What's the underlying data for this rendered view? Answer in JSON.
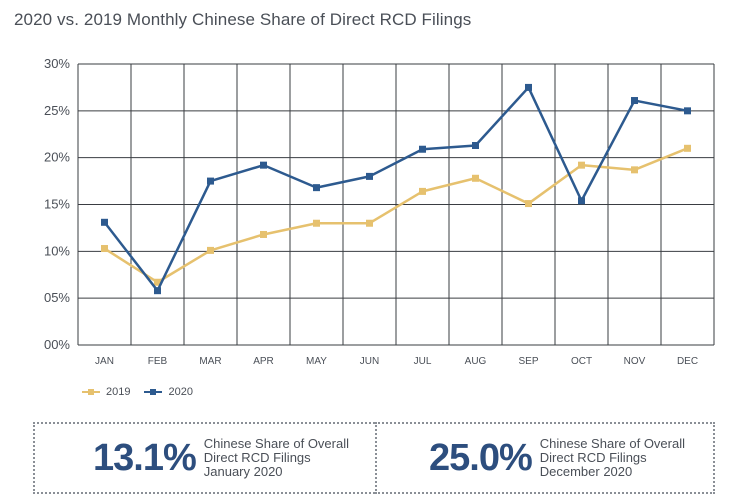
{
  "colors": {
    "series_2019": "#e6c16e",
    "series_2020": "#2d5a8f",
    "grid": "#3a3d42",
    "text": "#4a4f57",
    "stat_number": "#2d4e7e"
  },
  "chart_data": {
    "type": "line",
    "title": "2020 vs. 2019 Monthly Chinese Share of Direct RCD Filings",
    "categories": [
      "JAN",
      "FEB",
      "MAR",
      "APR",
      "MAY",
      "JUN",
      "JUL",
      "AUG",
      "SEP",
      "OCT",
      "NOV",
      "DEC"
    ],
    "y_ticks": [
      0,
      5,
      10,
      15,
      20,
      25,
      30
    ],
    "y_tick_labels": [
      "00%",
      "05%",
      "10%",
      "15%",
      "20%",
      "25%",
      "30%"
    ],
    "ylim": [
      0,
      30
    ],
    "grid": true,
    "legend_position": "bottom-left",
    "series": [
      {
        "name": "2019",
        "values": [
          10.3,
          6.7,
          10.1,
          11.8,
          13.0,
          13.0,
          16.4,
          17.8,
          15.1,
          19.2,
          18.7,
          21.0
        ]
      },
      {
        "name": "2020",
        "values": [
          13.1,
          5.8,
          17.5,
          19.2,
          16.8,
          18.0,
          20.9,
          21.3,
          27.5,
          15.4,
          26.1,
          25.0
        ]
      }
    ]
  },
  "stats": [
    {
      "value": "13.1%",
      "line1": "Chinese Share of Overall",
      "line2": "Direct RCD Filings",
      "line3": "January 2020"
    },
    {
      "value": "25.0%",
      "line1": "Chinese Share of Overall",
      "line2": "Direct RCD Filings",
      "line3": "December 2020"
    }
  ]
}
